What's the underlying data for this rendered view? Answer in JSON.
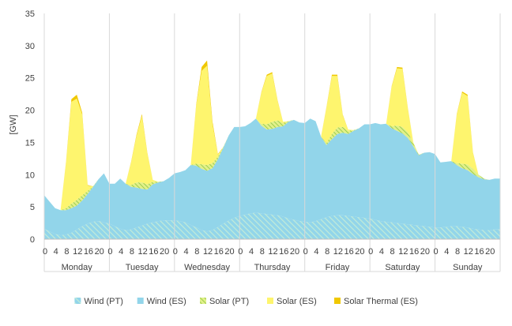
{
  "chart_data": {
    "type": "area",
    "stacked": true,
    "ylabel": "[GW]",
    "ylim": [
      0,
      35
    ],
    "y_ticks": [
      0,
      5,
      10,
      15,
      20,
      25,
      30,
      35
    ],
    "hour_ticks": [
      "0",
      "4",
      "8",
      "12",
      "16",
      "20"
    ],
    "hour_tick_values": [
      0,
      4,
      8,
      12,
      16,
      20
    ],
    "days": [
      "Monday",
      "Tuesday",
      "Wednesday",
      "Thursday",
      "Friday",
      "Saturday",
      "Sunday"
    ],
    "grid": "vertical lines at day boundaries",
    "legend_position": "bottom",
    "sample_interval_hours": 2,
    "series": [
      {
        "name": "Wind (PT)",
        "color": "#a8dcd0",
        "pattern": "hatch",
        "values": [
          [
            1.6,
            1.2,
            0.8,
            0.6,
            0.7,
            1.0,
            1.5,
            2.0,
            2.4,
            2.7,
            2.8,
            2.6
          ],
          [
            2.4,
            2.0,
            1.6,
            1.4,
            1.5,
            1.8,
            2.1,
            2.4,
            2.6,
            2.8,
            2.9,
            2.9
          ],
          [
            2.9,
            2.8,
            2.6,
            2.2,
            1.8,
            1.4,
            1.2,
            1.4,
            1.9,
            2.4,
            2.9,
            3.3
          ],
          [
            3.6,
            3.8,
            4.0,
            4.1,
            4.0,
            3.9,
            3.8,
            3.7,
            3.5,
            3.2,
            3.0,
            2.8
          ],
          [
            2.7,
            2.6,
            2.8,
            3.1,
            3.4,
            3.6,
            3.7,
            3.7,
            3.6,
            3.5,
            3.4,
            3.3
          ],
          [
            3.2,
            3.0,
            2.8,
            2.7,
            2.6,
            2.5,
            2.4,
            2.3,
            2.2,
            2.1,
            2.0,
            1.9
          ],
          [
            1.8,
            1.8,
            1.9,
            2.0,
            2.0,
            1.9,
            1.8,
            1.6,
            1.5,
            1.4,
            1.4,
            1.5
          ]
        ]
      },
      {
        "name": "Wind (ES)",
        "color": "#92d5ea",
        "pattern": "solid",
        "values": [
          [
            5.2,
            4.6,
            4.0,
            3.9,
            3.8,
            3.8,
            3.7,
            4.0,
            4.6,
            5.4,
            6.5,
            7.6
          ],
          [
            6.2,
            6.6,
            7.8,
            7.2,
            6.6,
            6.2,
            5.7,
            5.3,
            5.9,
            6.0,
            6.1,
            6.6
          ],
          [
            7.3,
            7.6,
            8.1,
            9.3,
            9.6,
            9.5,
            9.4,
            9.6,
            10.5,
            11.8,
            13.2,
            14.1
          ],
          [
            13.8,
            13.7,
            14.0,
            14.6,
            13.6,
            13.1,
            13.3,
            13.7,
            14.0,
            15.0,
            15.5,
            15.3
          ],
          [
            15.3,
            16.1,
            15.5,
            12.8,
            11.2,
            11.9,
            12.6,
            12.8,
            12.7,
            13.3,
            13.8,
            14.5
          ],
          [
            14.6,
            15.0,
            15.0,
            15.2,
            14.6,
            14.3,
            14.0,
            13.4,
            12.2,
            10.9,
            11.4,
            11.6
          ],
          [
            11.4,
            10.1,
            10.1,
            10.1,
            9.5,
            9.1,
            8.9,
            8.5,
            8.1,
            7.9,
            7.8,
            7.9
          ]
        ]
      },
      {
        "name": "Solar (PT)",
        "color": "#b6dd5c",
        "pattern": "hatch",
        "values": [
          [
            0,
            0,
            0,
            0,
            0.3,
            0.7,
            0.9,
            0.8,
            0.5,
            0.1,
            0,
            0
          ],
          [
            0,
            0,
            0,
            0,
            0.3,
            0.8,
            1.0,
            0.8,
            0.4,
            0.1,
            0,
            0
          ],
          [
            0,
            0,
            0,
            0,
            0.3,
            0.7,
            0.9,
            0.8,
            0.4,
            0.1,
            0,
            0
          ],
          [
            0,
            0,
            0,
            0,
            0.3,
            0.8,
            1.1,
            1.0,
            0.5,
            0.1,
            0,
            0
          ],
          [
            0,
            0,
            0,
            0,
            0.3,
            0.8,
            1.0,
            0.9,
            0.5,
            0.1,
            0,
            0
          ],
          [
            0,
            0,
            0,
            0,
            0.3,
            0.8,
            1.0,
            0.9,
            0.5,
            0.1,
            0,
            0
          ],
          [
            0,
            0,
            0,
            0,
            0.3,
            0.7,
            0.9,
            0.8,
            0.4,
            0.1,
            0,
            0
          ]
        ]
      },
      {
        "name": "Solar (ES)",
        "color": "#fef56e",
        "pattern": "solid",
        "values": [
          [
            0,
            0,
            0,
            0,
            7.0,
            15.8,
            15.7,
            12.5,
            0.8,
            0,
            0,
            0
          ],
          [
            0,
            0,
            0,
            0,
            3.5,
            7.2,
            10.3,
            4.8,
            0.3,
            0,
            0,
            0
          ],
          [
            0,
            0,
            0,
            0,
            9.0,
            14.5,
            15.4,
            6.0,
            0.3,
            0,
            0,
            0
          ],
          [
            0,
            0,
            0,
            0,
            4.8,
            7.5,
            7.5,
            3.0,
            0.2,
            0,
            0,
            0
          ],
          [
            0,
            0,
            0,
            0,
            5.5,
            9.0,
            8.0,
            1.8,
            0.2,
            0,
            0,
            0
          ],
          [
            0,
            0,
            0,
            0,
            6.1,
            8.9,
            9.0,
            3.6,
            0.1,
            0,
            0,
            0
          ],
          [
            0,
            0,
            0,
            0,
            7.5,
            11.0,
            10.6,
            2.4,
            0,
            0,
            0,
            0
          ]
        ]
      },
      {
        "name": "Solar Thermal (ES)",
        "color": "#f0c800",
        "pattern": "solid",
        "values": [
          [
            0,
            0,
            0,
            0,
            0.1,
            0.4,
            0.6,
            0.3,
            0.1,
            0,
            0,
            0
          ],
          [
            0,
            0,
            0,
            0,
            0.1,
            0.2,
            0.3,
            0.1,
            0,
            0,
            0,
            0
          ],
          [
            0,
            0,
            0,
            0,
            0.2,
            0.6,
            0.8,
            0.4,
            0.1,
            0,
            0,
            0
          ],
          [
            0,
            0,
            0,
            0,
            0.1,
            0.2,
            0.2,
            0.1,
            0,
            0,
            0,
            0
          ],
          [
            0,
            0,
            0,
            0,
            0.1,
            0.2,
            0.2,
            0.1,
            0,
            0,
            0,
            0
          ],
          [
            0,
            0,
            0,
            0,
            0.1,
            0.2,
            0.2,
            0.1,
            0,
            0,
            0,
            0
          ],
          [
            0,
            0,
            0,
            0,
            0.1,
            0.2,
            0.2,
            0.1,
            0,
            0,
            0,
            0
          ]
        ]
      }
    ]
  }
}
